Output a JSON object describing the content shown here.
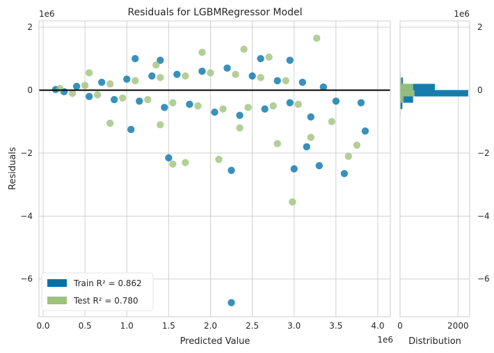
{
  "chart_data": [
    {
      "type": "scatter",
      "title": "Residuals for LGBMRegressor Model",
      "xlabel": "Predicted Value",
      "ylabel": "Residuals",
      "x_offset_label": "1e6",
      "y_offset_label": "1e6",
      "xlim": [
        -0.05,
        4.15
      ],
      "ylim": [
        -7.2,
        2.2
      ],
      "x_ticks": [
        0.0,
        0.5,
        1.0,
        1.5,
        2.0,
        2.5,
        3.0,
        3.5,
        4.0
      ],
      "x_tick_labels": [
        "0.0",
        "0.5",
        "1.0",
        "1.5",
        "2.0",
        "2.5",
        "3.0",
        "3.5",
        "4.0"
      ],
      "y_ticks": [
        2,
        0,
        -2,
        -4,
        -6
      ],
      "y_tick_labels": [
        "2",
        "0",
        "−2",
        "−4",
        "−6"
      ],
      "grid": true,
      "reference_line_y": 0,
      "legend_position": "lower-left",
      "series": [
        {
          "name": "Train",
          "legend_label": "Train R² = 0.862",
          "color": "#0072a7",
          "points": [
            [
              0.15,
              0.02
            ],
            [
              0.25,
              -0.05
            ],
            [
              0.4,
              0.12
            ],
            [
              0.55,
              -0.2
            ],
            [
              0.7,
              0.25
            ],
            [
              0.85,
              -0.3
            ],
            [
              1.0,
              0.35
            ],
            [
              1.15,
              -0.35
            ],
            [
              1.3,
              0.45
            ],
            [
              1.45,
              -0.55
            ],
            [
              1.6,
              0.5
            ],
            [
              1.75,
              -0.45
            ],
            [
              1.9,
              0.6
            ],
            [
              2.05,
              -0.7
            ],
            [
              2.2,
              0.7
            ],
            [
              2.35,
              -0.8
            ],
            [
              2.5,
              0.45
            ],
            [
              2.65,
              -0.6
            ],
            [
              2.8,
              0.3
            ],
            [
              2.95,
              -0.4
            ],
            [
              3.1,
              0.25
            ],
            [
              3.2,
              -0.85
            ],
            [
              3.35,
              0.1
            ],
            [
              3.5,
              -0.35
            ],
            [
              1.1,
              1.0
            ],
            [
              1.4,
              0.95
            ],
            [
              1.5,
              -2.15
            ],
            [
              2.25,
              -2.55
            ],
            [
              3.0,
              -2.5
            ],
            [
              3.3,
              -2.4
            ],
            [
              3.6,
              -2.65
            ],
            [
              3.85,
              -1.3
            ],
            [
              3.8,
              -0.4
            ],
            [
              2.6,
              1.0
            ],
            [
              2.95,
              0.95
            ],
            [
              2.25,
              -6.75
            ],
            [
              1.05,
              -1.25
            ],
            [
              3.15,
              -1.8
            ]
          ]
        },
        {
          "name": "Test",
          "legend_label": "Test R² = 0.780",
          "color": "#9dc27a",
          "points": [
            [
              0.2,
              0.05
            ],
            [
              0.35,
              -0.1
            ],
            [
              0.5,
              0.15
            ],
            [
              0.65,
              -0.15
            ],
            [
              0.8,
              0.2
            ],
            [
              0.95,
              -0.25
            ],
            [
              1.1,
              0.3
            ],
            [
              1.25,
              -0.3
            ],
            [
              1.4,
              0.4
            ],
            [
              1.55,
              -0.4
            ],
            [
              1.7,
              0.45
            ],
            [
              1.85,
              -0.5
            ],
            [
              2.0,
              0.55
            ],
            [
              2.15,
              -0.6
            ],
            [
              2.3,
              0.5
            ],
            [
              2.45,
              -0.55
            ],
            [
              2.6,
              0.4
            ],
            [
              2.75,
              -0.5
            ],
            [
              2.9,
              0.3
            ],
            [
              3.05,
              -0.45
            ],
            [
              0.55,
              0.55
            ],
            [
              1.35,
              0.8
            ],
            [
              1.9,
              1.2
            ],
            [
              2.4,
              1.3
            ],
            [
              2.7,
              1.05
            ],
            [
              3.27,
              1.65
            ],
            [
              1.55,
              -2.35
            ],
            [
              1.7,
              -2.3
            ],
            [
              2.1,
              -2.2
            ],
            [
              3.75,
              -1.75
            ],
            [
              3.65,
              -2.1
            ],
            [
              3.2,
              -1.5
            ],
            [
              2.8,
              -1.7
            ],
            [
              2.98,
              -3.55
            ],
            [
              0.8,
              -1.05
            ],
            [
              1.4,
              -1.1
            ],
            [
              2.35,
              -1.2
            ],
            [
              3.45,
              -1.0
            ]
          ]
        }
      ]
    },
    {
      "type": "bar",
      "orientation": "horizontal",
      "xlabel": "Distribution",
      "y_offset_label": "1e6",
      "xlim": [
        0,
        2400
      ],
      "ylim": [
        -7.2,
        2.2
      ],
      "x_ticks": [
        0,
        2000
      ],
      "x_tick_labels": [
        "0",
        "2000"
      ],
      "y_ticks": [
        2,
        0,
        -2,
        -4,
        -6
      ],
      "y_tick_labels": [
        "2",
        "0",
        "−2",
        "−4",
        "−6"
      ],
      "grid": true,
      "series": [
        {
          "name": "Train",
          "color": "#0072a7",
          "bins": [
            {
              "y0": 0.4,
              "y1": 0.6,
              "count": 15
            },
            {
              "y0": 0.2,
              "y1": 0.4,
              "count": 100
            },
            {
              "y0": 0.0,
              "y1": 0.2,
              "count": 1200
            },
            {
              "y0": -0.2,
              "y1": 0.0,
              "count": 2350
            },
            {
              "y0": -0.4,
              "y1": -0.2,
              "count": 450
            },
            {
              "y0": -0.6,
              "y1": -0.4,
              "count": 80
            },
            {
              "y0": -0.8,
              "y1": -0.6,
              "count": 15
            }
          ]
        },
        {
          "name": "Test",
          "color": "#9dc27a",
          "bins": [
            {
              "y0": 0.2,
              "y1": 0.4,
              "count": 50
            },
            {
              "y0": 0.0,
              "y1": 0.2,
              "count": 450
            },
            {
              "y0": -0.2,
              "y1": 0.0,
              "count": 500
            },
            {
              "y0": -0.4,
              "y1": -0.2,
              "count": 120
            },
            {
              "y0": -0.6,
              "y1": -0.4,
              "count": 20
            }
          ]
        }
      ]
    }
  ]
}
